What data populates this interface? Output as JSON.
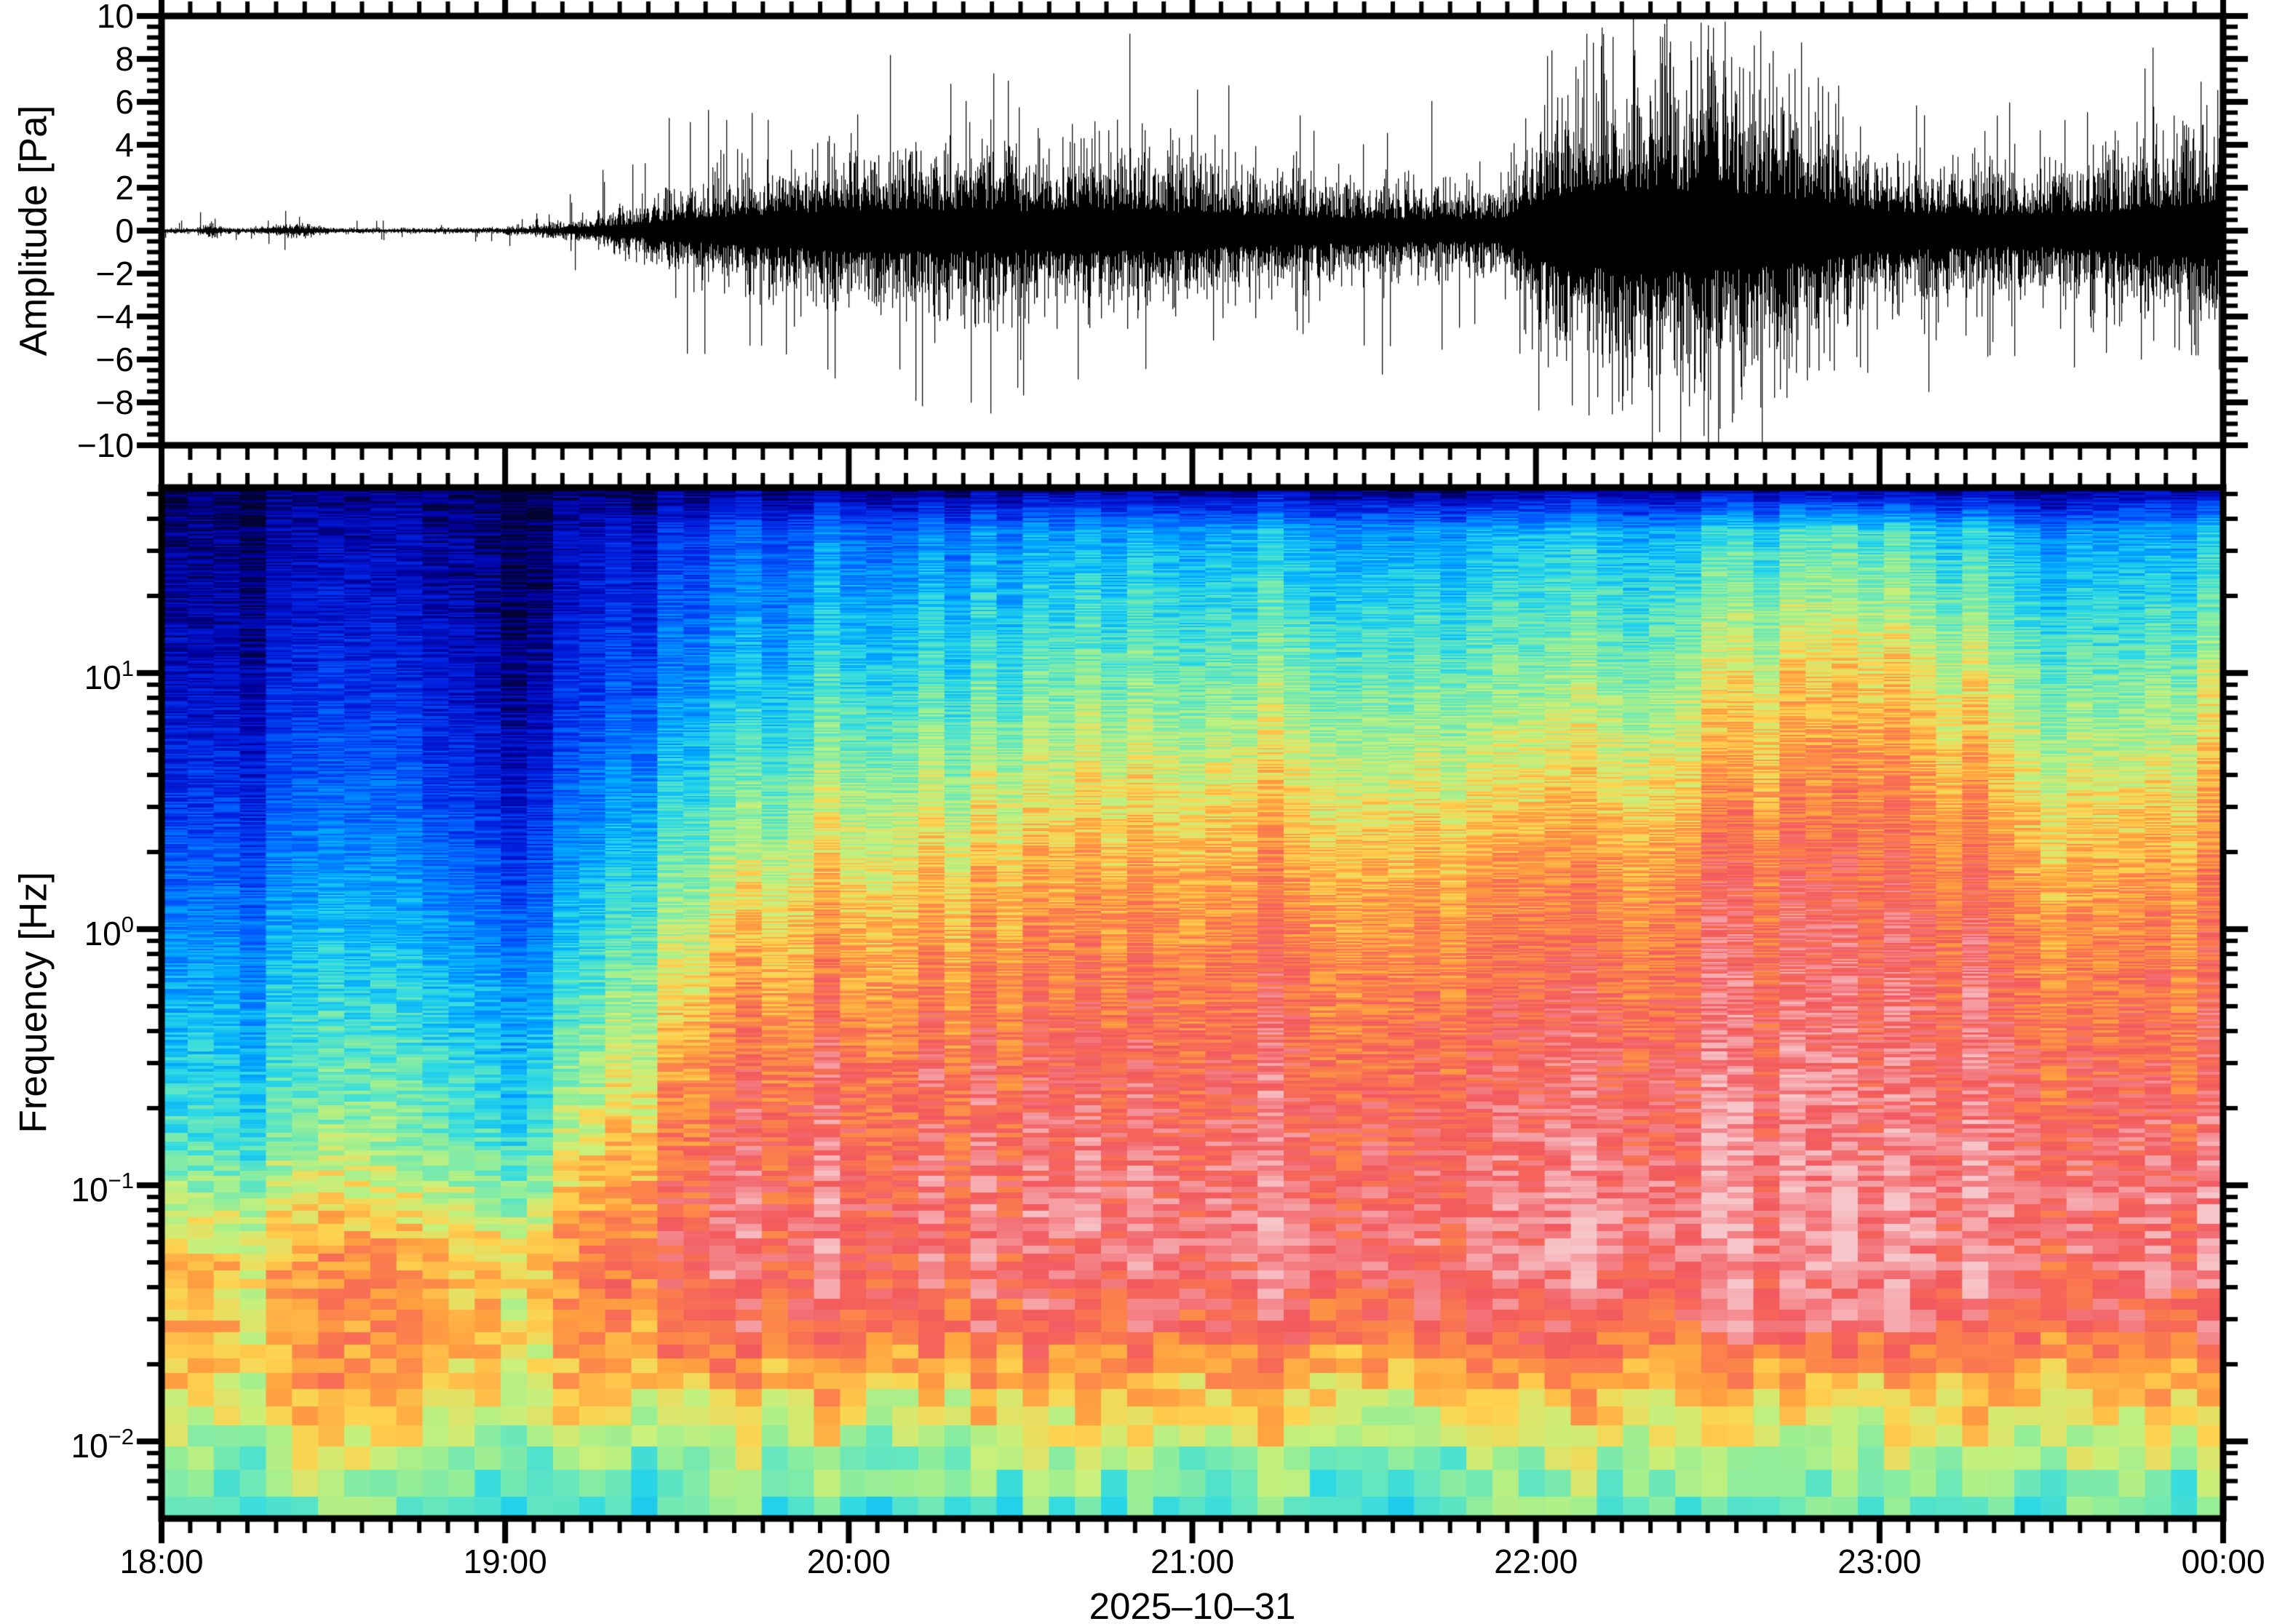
{
  "noise_seed": 42,
  "figure": {
    "background": "#ffffff",
    "frame_color": "#000000",
    "top_panel": {
      "ylabel": "Amplitude [Pa]",
      "y_tick_labels": [
        "10",
        "8",
        "6",
        "4",
        "2",
        "0",
        "−2",
        "−4",
        "−6",
        "−8",
        "−10"
      ],
      "y_tick_values": [
        10,
        8,
        6,
        4,
        2,
        0,
        -2,
        -4,
        -6,
        -8,
        -10
      ]
    },
    "bottom_panel": {
      "ylabel": "Frequency [Hz]",
      "freq_ticks": [
        {
          "mantissa": "10",
          "exponent": "1",
          "log10": 1
        },
        {
          "mantissa": "10",
          "exponent": "0",
          "log10": 0
        },
        {
          "mantissa": "10",
          "exponent": "−1",
          "log10": -1
        },
        {
          "mantissa": "10",
          "exponent": "−2",
          "log10": -2
        }
      ]
    },
    "x_axis": {
      "tick_labels": [
        "18:00",
        "19:00",
        "20:00",
        "21:00",
        "22:00",
        "23:00",
        "00:00"
      ],
      "tick_hours": [
        0,
        1,
        2,
        3,
        4,
        5,
        6
      ],
      "minor_tick_minutes": 5,
      "date_label": "2025–10–31"
    }
  },
  "chart_data": [
    {
      "type": "line",
      "title": "Acoustic pressure waveform",
      "ylabel": "Amplitude [Pa]",
      "ylim": [
        -10,
        10
      ],
      "y_tick_step": 2,
      "x_start": "18:00",
      "x_end": "00:00",
      "x_span_hours": 6,
      "line_color": "#000000",
      "envelope": {
        "t_hours": [
          0.0,
          0.1,
          0.15,
          0.18,
          0.25,
          0.4,
          0.5,
          0.55,
          0.75,
          0.95,
          1.1,
          1.17,
          1.25,
          1.35,
          1.45,
          1.55,
          1.65,
          1.75,
          1.85,
          2.0,
          2.15,
          2.3,
          2.45,
          2.6,
          2.75,
          2.9,
          3.05,
          3.2,
          3.4,
          3.6,
          3.8,
          3.9,
          3.97,
          4.05,
          4.2,
          4.4,
          4.6,
          4.75,
          4.9,
          5.05,
          5.2,
          5.35,
          5.5,
          5.65,
          5.78,
          5.85,
          5.92,
          6.0
        ],
        "core_pa": [
          0.1,
          0.1,
          0.35,
          0.12,
          0.1,
          0.28,
          0.12,
          0.11,
          0.1,
          0.11,
          0.22,
          0.35,
          0.55,
          0.9,
          1.3,
          1.75,
          2.1,
          2.4,
          2.7,
          2.95,
          3.1,
          3.2,
          3.05,
          2.9,
          3.15,
          2.95,
          2.6,
          2.25,
          2.0,
          1.8,
          1.7,
          1.95,
          3.2,
          5.0,
          5.8,
          6.2,
          5.8,
          5.0,
          3.8,
          2.9,
          2.5,
          2.35,
          2.55,
          2.9,
          3.3,
          3.7,
          4.1,
          4.5
        ],
        "peak_pa": [
          0.45,
          0.9,
          1.5,
          0.5,
          0.45,
          1.1,
          0.5,
          0.5,
          0.45,
          0.6,
          1.0,
          1.6,
          2.4,
          3.8,
          5.2,
          6.5,
          5.8,
          6.2,
          7.2,
          8.2,
          8.8,
          9.9,
          8.2,
          7.6,
          9.9,
          8.4,
          7.2,
          6.2,
          5.6,
          8.6,
          5.2,
          5.8,
          7.8,
          9.6,
          10.0,
          10.0,
          10.0,
          9.9,
          8.2,
          9.6,
          6.6,
          6.2,
          6.6,
          7.2,
          8.2,
          9.9,
          8.0,
          8.6
        ]
      }
    },
    {
      "type": "heatmap",
      "title": "Spectrogram",
      "ylabel": "Frequency [Hz]",
      "f_min_hz": 0.005,
      "f_max_hz": 53,
      "log_y": true,
      "x_span_hours": 6,
      "time_nodes_hours": [
        0,
        0.25,
        0.5,
        0.75,
        1,
        1.25,
        1.5,
        1.75,
        2,
        2.25,
        2.5,
        2.75,
        3,
        3.25,
        3.5,
        3.75,
        4,
        4.25,
        4.5,
        4.75,
        5,
        5.25,
        5.5,
        5.75,
        6
      ],
      "freq_nodes_log10hz": [
        -2.3,
        -2.05,
        -1.8,
        -1.55,
        -1.3,
        -1.05,
        -0.8,
        -0.5,
        -0.2,
        0.1,
        0.4,
        0.7,
        1.0,
        1.3,
        1.55,
        1.727
      ],
      "power_grid_rows_bottom_to_top": [
        [
          0.52,
          0.49,
          0.54,
          0.51,
          0.48,
          0.52,
          0.5,
          0.53,
          0.52,
          0.5,
          0.54,
          0.52,
          0.51,
          0.53,
          0.5,
          0.52,
          0.54,
          0.52,
          0.51,
          0.5,
          0.53,
          0.52,
          0.54,
          0.51,
          0.52
        ],
        [
          0.6,
          0.56,
          0.64,
          0.58,
          0.55,
          0.61,
          0.58,
          0.62,
          0.6,
          0.58,
          0.63,
          0.6,
          0.59,
          0.62,
          0.58,
          0.6,
          0.62,
          0.6,
          0.62,
          0.58,
          0.61,
          0.6,
          0.62,
          0.59,
          0.61
        ],
        [
          0.72,
          0.68,
          0.76,
          0.7,
          0.67,
          0.73,
          0.71,
          0.74,
          0.72,
          0.7,
          0.74,
          0.72,
          0.71,
          0.74,
          0.7,
          0.72,
          0.74,
          0.72,
          0.73,
          0.7,
          0.72,
          0.72,
          0.74,
          0.71,
          0.72
        ],
        [
          0.75,
          0.71,
          0.78,
          0.73,
          0.7,
          0.78,
          0.82,
          0.85,
          0.86,
          0.85,
          0.87,
          0.86,
          0.85,
          0.87,
          0.85,
          0.86,
          0.87,
          0.86,
          0.88,
          0.87,
          0.89,
          0.87,
          0.85,
          0.84,
          0.86
        ],
        [
          0.73,
          0.7,
          0.77,
          0.72,
          0.69,
          0.8,
          0.86,
          0.89,
          0.9,
          0.89,
          0.91,
          0.9,
          0.9,
          0.92,
          0.9,
          0.91,
          0.92,
          0.91,
          0.93,
          0.92,
          0.94,
          0.92,
          0.9,
          0.89,
          0.9
        ],
        [
          0.62,
          0.59,
          0.67,
          0.62,
          0.58,
          0.74,
          0.84,
          0.88,
          0.9,
          0.89,
          0.91,
          0.91,
          0.9,
          0.92,
          0.9,
          0.91,
          0.92,
          0.91,
          0.94,
          0.93,
          0.95,
          0.93,
          0.91,
          0.89,
          0.91
        ],
        [
          0.52,
          0.49,
          0.56,
          0.52,
          0.47,
          0.66,
          0.8,
          0.86,
          0.88,
          0.87,
          0.89,
          0.89,
          0.88,
          0.9,
          0.88,
          0.89,
          0.9,
          0.89,
          0.92,
          0.91,
          0.93,
          0.91,
          0.88,
          0.86,
          0.88
        ],
        [
          0.46,
          0.43,
          0.5,
          0.46,
          0.41,
          0.58,
          0.74,
          0.82,
          0.85,
          0.84,
          0.86,
          0.86,
          0.85,
          0.87,
          0.85,
          0.86,
          0.87,
          0.86,
          0.9,
          0.89,
          0.91,
          0.89,
          0.86,
          0.83,
          0.85
        ],
        [
          0.4,
          0.37,
          0.44,
          0.4,
          0.35,
          0.5,
          0.66,
          0.76,
          0.8,
          0.79,
          0.82,
          0.82,
          0.81,
          0.84,
          0.82,
          0.83,
          0.84,
          0.83,
          0.87,
          0.87,
          0.89,
          0.87,
          0.82,
          0.8,
          0.83
        ],
        [
          0.33,
          0.3,
          0.37,
          0.33,
          0.27,
          0.42,
          0.57,
          0.68,
          0.74,
          0.73,
          0.77,
          0.78,
          0.77,
          0.8,
          0.78,
          0.79,
          0.8,
          0.79,
          0.84,
          0.85,
          0.87,
          0.84,
          0.78,
          0.76,
          0.8
        ],
        [
          0.26,
          0.23,
          0.3,
          0.26,
          0.19,
          0.34,
          0.48,
          0.58,
          0.66,
          0.65,
          0.7,
          0.71,
          0.7,
          0.73,
          0.71,
          0.72,
          0.73,
          0.72,
          0.78,
          0.8,
          0.83,
          0.79,
          0.72,
          0.69,
          0.75
        ],
        [
          0.2,
          0.17,
          0.24,
          0.2,
          0.13,
          0.27,
          0.39,
          0.49,
          0.57,
          0.56,
          0.61,
          0.63,
          0.62,
          0.65,
          0.63,
          0.64,
          0.65,
          0.64,
          0.7,
          0.74,
          0.78,
          0.72,
          0.64,
          0.6,
          0.69
        ],
        [
          0.15,
          0.12,
          0.18,
          0.14,
          0.08,
          0.21,
          0.31,
          0.4,
          0.48,
          0.47,
          0.52,
          0.54,
          0.53,
          0.56,
          0.54,
          0.55,
          0.56,
          0.55,
          0.62,
          0.67,
          0.72,
          0.64,
          0.55,
          0.51,
          0.61
        ],
        [
          0.11,
          0.08,
          0.13,
          0.1,
          0.05,
          0.16,
          0.25,
          0.33,
          0.4,
          0.39,
          0.44,
          0.46,
          0.45,
          0.48,
          0.46,
          0.47,
          0.48,
          0.47,
          0.53,
          0.57,
          0.61,
          0.53,
          0.46,
          0.42,
          0.5
        ],
        [
          0.08,
          0.06,
          0.09,
          0.07,
          0.04,
          0.12,
          0.19,
          0.26,
          0.32,
          0.31,
          0.36,
          0.38,
          0.37,
          0.4,
          0.38,
          0.39,
          0.4,
          0.39,
          0.44,
          0.47,
          0.5,
          0.43,
          0.37,
          0.34,
          0.41
        ],
        [
          0.03,
          0.02,
          0.03,
          0.03,
          0.02,
          0.03,
          0.04,
          0.05,
          0.05,
          0.05,
          0.06,
          0.06,
          0.06,
          0.06,
          0.06,
          0.06,
          0.06,
          0.06,
          0.06,
          0.07,
          0.07,
          0.06,
          0.05,
          0.05,
          0.06
        ]
      ],
      "colormap_stops": [
        [
          0.0,
          "#020230"
        ],
        [
          0.08,
          "#0000a0"
        ],
        [
          0.18,
          "#0020e0"
        ],
        [
          0.28,
          "#0060ff"
        ],
        [
          0.38,
          "#00a8ff"
        ],
        [
          0.46,
          "#2ad8e6"
        ],
        [
          0.52,
          "#62e6c0"
        ],
        [
          0.58,
          "#96ee96"
        ],
        [
          0.64,
          "#c8f07a"
        ],
        [
          0.7,
          "#ffd24f"
        ],
        [
          0.76,
          "#ffa040"
        ],
        [
          0.82,
          "#fa7850"
        ],
        [
          0.88,
          "#f2595e"
        ],
        [
          0.94,
          "#f5969b"
        ],
        [
          1.0,
          "#f7c6ca"
        ]
      ]
    }
  ]
}
